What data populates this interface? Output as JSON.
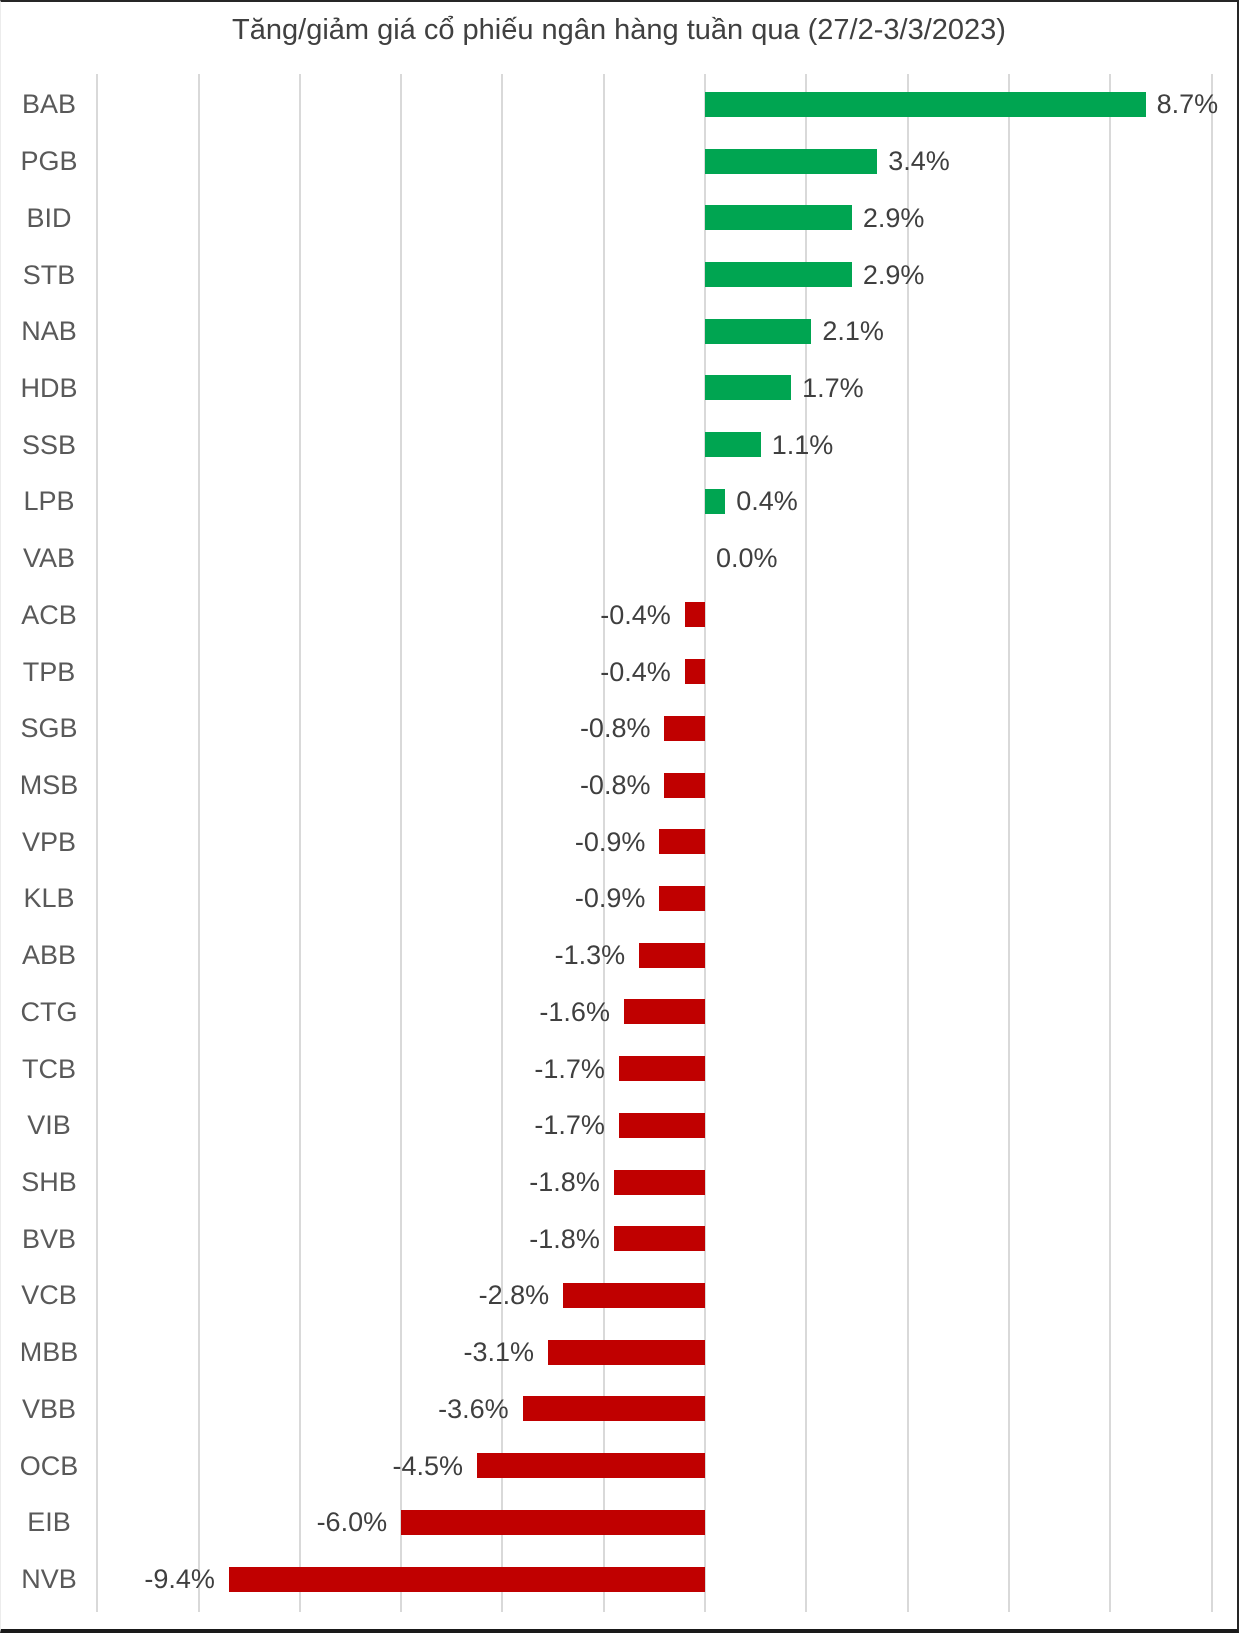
{
  "chart_data": {
    "type": "bar",
    "orientation": "horizontal",
    "title": "Tăng/giảm giá cổ phiếu ngân hàng tuần qua (27/2-3/3/2023)",
    "categories": [
      "BAB",
      "PGB",
      "BID",
      "STB",
      "NAB",
      "HDB",
      "SSB",
      "LPB",
      "VAB",
      "ACB",
      "TPB",
      "SGB",
      "MSB",
      "VPB",
      "KLB",
      "ABB",
      "CTG",
      "TCB",
      "VIB",
      "SHB",
      "BVB",
      "VCB",
      "MBB",
      "VBB",
      "OCB",
      "EIB",
      "NVB"
    ],
    "values": [
      8.7,
      3.4,
      2.9,
      2.9,
      2.1,
      1.7,
      1.1,
      0.4,
      0.0,
      -0.4,
      -0.4,
      -0.8,
      -0.8,
      -0.9,
      -0.9,
      -1.3,
      -1.6,
      -1.7,
      -1.7,
      -1.8,
      -1.8,
      -2.8,
      -3.1,
      -3.6,
      -4.5,
      -6.0,
      -9.4
    ],
    "value_labels": [
      "8.7%",
      "3.4%",
      "2.9%",
      "2.9%",
      "2.1%",
      "1.7%",
      "1.1%",
      "0.4%",
      "0.0%",
      "-0.4%",
      "-0.4%",
      "-0.8%",
      "-0.8%",
      "-0.9%",
      "-0.9%",
      "-1.3%",
      "-1.6%",
      "-1.7%",
      "-1.7%",
      "-1.8%",
      "-1.8%",
      "-2.8%",
      "-3.1%",
      "-3.6%",
      "-4.5%",
      "-6.0%",
      "-9.4%"
    ],
    "xlabel": "",
    "ylabel": "",
    "xlim": [
      -12,
      10
    ],
    "gridline_step_pct": 2,
    "grid": "vertical-only",
    "legend_position": "none",
    "value_label_position": "outside-end",
    "colors": {
      "positive_bar": "#00A551",
      "negative_bar": "#C00000",
      "gridline": "#D9D9D9",
      "category_label": "#595959",
      "value_label": "#3F3F3F",
      "title": "#404040",
      "background": "#FFFFFF"
    }
  }
}
